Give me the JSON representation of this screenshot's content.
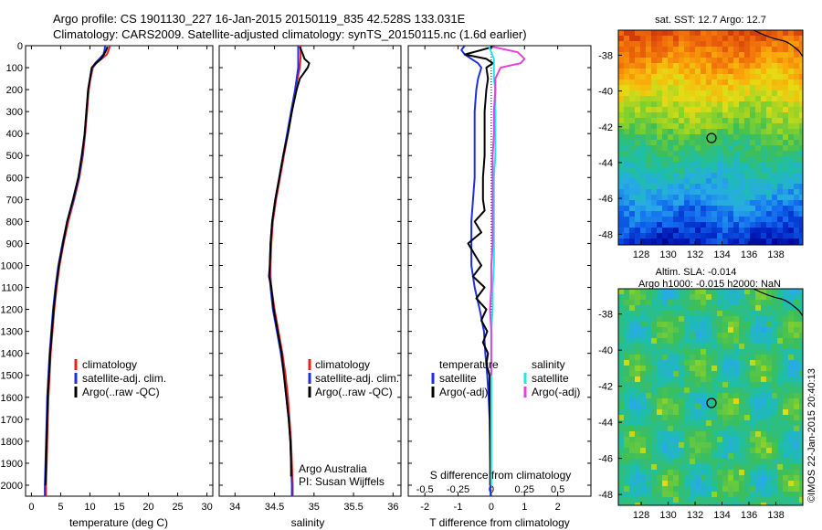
{
  "header": {
    "line1": "Argo profile: CS 1901130_227 16-Jan-2015 20150119_835 42.528S 133.031E",
    "line2": "Climatology: CARS2009. Satellite-adjusted climatology: synTS_20150115.nc (1.6d earlier)"
  },
  "colors": {
    "climatology": "#e8221c",
    "satellite": "#1f2fe0",
    "argo": "#000000",
    "sal_satellite": "#22e6e6",
    "sal_argo": "#e83ee0"
  },
  "panel_temp": {
    "xlabel": "temperature (deg C)",
    "legend": [
      "climatology",
      "satellite-adj. clim.",
      "Argo(..raw -QC)"
    ]
  },
  "panel_sal": {
    "xlabel": "salinity",
    "legend": [
      "climatology",
      "satellite-adj. clim.",
      "Argo(..raw -QC)"
    ],
    "credit1": "Argo Australia",
    "credit2": "PI: Susan Wijffels"
  },
  "panel_diff": {
    "xlabel": "T difference from climatology",
    "top_label": "S difference from climatology",
    "legend_t_title": "temperature",
    "legend_s_title": "salinity",
    "legend_t": [
      "satellite",
      "Argo(-adj)"
    ],
    "legend_s": [
      "satellite",
      "Argo(-adj)"
    ]
  },
  "map_sst": {
    "title": "sat. SST: 12.7  Argo: 12.7"
  },
  "map_sla": {
    "title1": "Altim. SLA: -0.014",
    "title2": "Argo h1000: -0.015 h2000: NaN"
  },
  "footer": {
    "stamp": "©IMOS 22-Jan-2015 20:40:13"
  },
  "chart_data": [
    {
      "type": "line",
      "panel": "temperature",
      "xlabel": "temperature (deg C)",
      "ylabel": "",
      "xlim": [
        -1,
        31
      ],
      "ylim": [
        2050,
        0
      ],
      "xticks": [
        0,
        5,
        10,
        15,
        20,
        25,
        30
      ],
      "yticks": [
        0,
        100,
        200,
        300,
        400,
        500,
        600,
        700,
        800,
        900,
        1000,
        1100,
        1200,
        1300,
        1400,
        1500,
        1600,
        1700,
        1800,
        1900,
        2000
      ],
      "series": [
        {
          "name": "climatology",
          "color": "#e8221c",
          "depth": [
            0,
            20,
            40,
            60,
            80,
            100,
            150,
            200,
            300,
            400,
            500,
            600,
            700,
            800,
            900,
            1000,
            1100,
            1200,
            1300,
            1400,
            1500,
            1600,
            1700,
            1800,
            1900,
            2000,
            2050
          ],
          "values": [
            13.4,
            13.2,
            12.9,
            12.0,
            11.1,
            10.5,
            10.1,
            9.8,
            9.5,
            9.2,
            8.8,
            8.2,
            7.3,
            6.3,
            5.5,
            4.8,
            4.3,
            3.9,
            3.6,
            3.3,
            3.1,
            2.9,
            2.8,
            2.7,
            2.6,
            2.5,
            2.5
          ]
        },
        {
          "name": "satellite-adj. clim.",
          "color": "#1f2fe0",
          "depth": [
            0,
            20,
            40,
            60,
            80,
            100,
            150,
            200,
            300,
            400,
            500,
            600,
            700,
            800,
            900,
            1000,
            1100,
            1200,
            1300,
            1400,
            1500,
            1600,
            1700,
            1800,
            1900,
            2000,
            2050
          ],
          "values": [
            12.6,
            12.5,
            12.3,
            11.6,
            10.9,
            10.4,
            10.0,
            9.7,
            9.4,
            9.1,
            8.7,
            8.1,
            7.2,
            6.1,
            5.3,
            4.6,
            4.1,
            3.7,
            3.4,
            3.1,
            2.9,
            2.7,
            2.6,
            2.5,
            2.4,
            2.3,
            2.3
          ]
        },
        {
          "name": "Argo(..raw -QC)",
          "color": "#000000",
          "depth": [
            5,
            20,
            40,
            60,
            80,
            100,
            150,
            200,
            300,
            400,
            500,
            600,
            700,
            800,
            900,
            1000,
            1100,
            1200,
            1300,
            1400,
            1500,
            1600,
            1700,
            1800,
            1900,
            2000
          ],
          "values": [
            13.0,
            12.8,
            12.4,
            11.9,
            11.0,
            10.3,
            10.0,
            9.7,
            9.4,
            9.1,
            8.6,
            8.0,
            7.1,
            6.1,
            5.4,
            4.7,
            4.2,
            3.8,
            3.5,
            3.2,
            3.0,
            2.8,
            2.7,
            2.6,
            2.5,
            2.4
          ]
        }
      ]
    },
    {
      "type": "line",
      "panel": "salinity",
      "xlabel": "salinity",
      "xlim": [
        33.8,
        36.1
      ],
      "ylim": [
        2050,
        0
      ],
      "xticks": [
        34,
        34.5,
        35,
        35.5,
        36
      ],
      "series": [
        {
          "name": "climatology",
          "color": "#e8221c",
          "depth": [
            0,
            50,
            100,
            150,
            200,
            300,
            400,
            500,
            600,
            700,
            800,
            900,
            1000,
            1050,
            1100,
            1200,
            1300,
            1400,
            1500,
            1600,
            1700,
            1800,
            1900,
            2000,
            2050
          ],
          "values": [
            34.83,
            34.83,
            34.82,
            34.79,
            34.77,
            34.72,
            34.67,
            34.62,
            34.57,
            34.52,
            34.48,
            34.46,
            34.45,
            34.45,
            34.46,
            34.5,
            34.55,
            34.6,
            34.64,
            34.67,
            34.69,
            34.71,
            34.72,
            34.73,
            34.73
          ]
        },
        {
          "name": "satellite-adj. clim.",
          "color": "#1f2fe0",
          "depth": [
            0,
            50,
            100,
            150,
            200,
            300,
            400,
            500,
            600,
            700,
            800,
            900,
            1000,
            1050,
            1100,
            1200,
            1300,
            1400,
            1500,
            1600,
            1700,
            1800,
            1900,
            2000,
            2050
          ],
          "values": [
            34.8,
            34.8,
            34.8,
            34.78,
            34.76,
            34.71,
            34.66,
            34.61,
            34.56,
            34.51,
            34.47,
            34.45,
            34.44,
            34.44,
            34.45,
            34.48,
            34.53,
            34.58,
            34.62,
            34.65,
            34.68,
            34.7,
            34.71,
            34.72,
            34.72
          ]
        },
        {
          "name": "Argo(..raw -QC)",
          "color": "#000000",
          "depth": [
            5,
            30,
            60,
            80,
            100,
            130,
            150,
            200,
            300,
            400,
            500,
            600,
            700,
            800,
            900,
            1000,
            1050,
            1100,
            1200,
            1300,
            1400,
            1500,
            1600,
            1700,
            1800,
            1900,
            1960
          ],
          "values": [
            34.82,
            34.85,
            34.88,
            34.94,
            34.92,
            34.86,
            34.82,
            34.78,
            34.72,
            34.67,
            34.61,
            34.56,
            34.51,
            34.47,
            34.45,
            34.44,
            34.43,
            34.46,
            34.49,
            34.54,
            34.59,
            34.62,
            34.65,
            34.68,
            34.7,
            34.71,
            34.71
          ]
        }
      ]
    },
    {
      "type": "line",
      "panel": "difference",
      "xlabel": "T difference from climatology",
      "xlim": [
        -2.5,
        3
      ],
      "ylim": [
        2050,
        0
      ],
      "xticks": [
        -2,
        -1,
        0,
        1,
        2
      ],
      "top_tick_labels": [
        "-0.5",
        "-0.25",
        "0",
        "0.25",
        "0.5"
      ],
      "series": [
        {
          "name": "temperature satellite",
          "color": "#1f2fe0",
          "depth": [
            0,
            20,
            40,
            60,
            80,
            100,
            150,
            200,
            300,
            400,
            500,
            600,
            700,
            800,
            900,
            1000,
            1100,
            1200,
            1300,
            1400,
            1500,
            1600,
            1700,
            1800,
            1900,
            2000,
            2050
          ],
          "values": [
            -0.8,
            -0.9,
            -0.8,
            -0.6,
            -0.4,
            -0.3,
            -0.4,
            -0.45,
            -0.5,
            -0.5,
            -0.5,
            -0.5,
            -0.55,
            -0.6,
            -0.6,
            -0.6,
            -0.5,
            -0.35,
            -0.22,
            -0.18,
            -0.12,
            -0.08,
            -0.05,
            -0.04,
            -0.03,
            -0.03,
            -0.02
          ]
        },
        {
          "name": "temperature Argo(-adj)",
          "color": "#000000",
          "depth": [
            5,
            20,
            40,
            60,
            80,
            100,
            150,
            200,
            300,
            400,
            500,
            600,
            700,
            750,
            800,
            850,
            900,
            950,
            1000,
            1050,
            1100,
            1150,
            1200,
            1250,
            1300,
            1350,
            1400,
            1450,
            1500,
            1600,
            1700,
            1800,
            1900,
            2000
          ],
          "values": [
            0.05,
            -0.3,
            -0.8,
            -0.15,
            0.05,
            -0.15,
            -0.1,
            -0.15,
            -0.2,
            -0.2,
            -0.2,
            -0.25,
            -0.25,
            -0.2,
            -0.5,
            -0.3,
            -0.7,
            -0.5,
            -0.3,
            -0.55,
            -0.2,
            -0.45,
            -0.15,
            -0.3,
            -0.12,
            -0.25,
            -0.1,
            -0.15,
            -0.05,
            -0.05,
            -0.04,
            -0.04,
            -0.03,
            -0.03
          ]
        },
        {
          "name": "salinity satellite",
          "color": "#22e6e6",
          "depth": [
            0,
            30,
            60,
            100,
            150,
            200,
            300,
            400,
            500,
            600,
            700,
            800,
            900,
            1000,
            1100,
            1200,
            1300,
            1400,
            1500,
            1600,
            1700,
            1800,
            1900,
            2000
          ],
          "values": [
            -0.02,
            0.0,
            0.02,
            0.02,
            0.02,
            0.03,
            0.03,
            0.03,
            0.03,
            0.02,
            0.02,
            0.02,
            0.02,
            0.02,
            0.01,
            0.01,
            0.0,
            0.0,
            0.0,
            0.0,
            0.0,
            0.0,
            0.0,
            0.0
          ]
        },
        {
          "name": "salinity Argo(-adj)",
          "color": "#e83ee0",
          "depth": [
            5,
            30,
            60,
            80,
            100,
            150,
            200,
            300,
            400,
            500,
            600,
            700,
            800,
            900,
            1000,
            1100,
            1200,
            1300,
            1400,
            1500
          ],
          "values": [
            0.01,
            0.2,
            0.25,
            0.22,
            0.07,
            0.03,
            0.03,
            0.02,
            0.02,
            0.01,
            0.01,
            0.01,
            0.01,
            0.01,
            0.0,
            0.0,
            -0.01,
            0.0,
            0.0,
            0.0
          ]
        }
      ]
    },
    {
      "type": "heatmap",
      "panel": "SST map",
      "title": "sat. SST: 12.7  Argo: 12.7",
      "xticks": [
        128,
        130,
        132,
        134,
        136,
        138
      ],
      "yticks": [
        -38,
        -40,
        -42,
        -44,
        -46,
        -48
      ],
      "xlim": [
        126.3,
        140
      ],
      "ylim": [
        -48.6,
        -36.6
      ],
      "marker": {
        "lon": 133.031,
        "lat": -42.528
      }
    },
    {
      "type": "heatmap",
      "panel": "SLA map",
      "title": "Altim. SLA: -0.014",
      "xticks": [
        128,
        130,
        132,
        134,
        136,
        138
      ],
      "yticks": [
        -38,
        -40,
        -42,
        -44,
        -46,
        -48
      ],
      "xlim": [
        126.3,
        140
      ],
      "ylim": [
        -48.6,
        -36.6
      ],
      "marker": {
        "lon": 133.031,
        "lat": -42.528
      }
    }
  ]
}
